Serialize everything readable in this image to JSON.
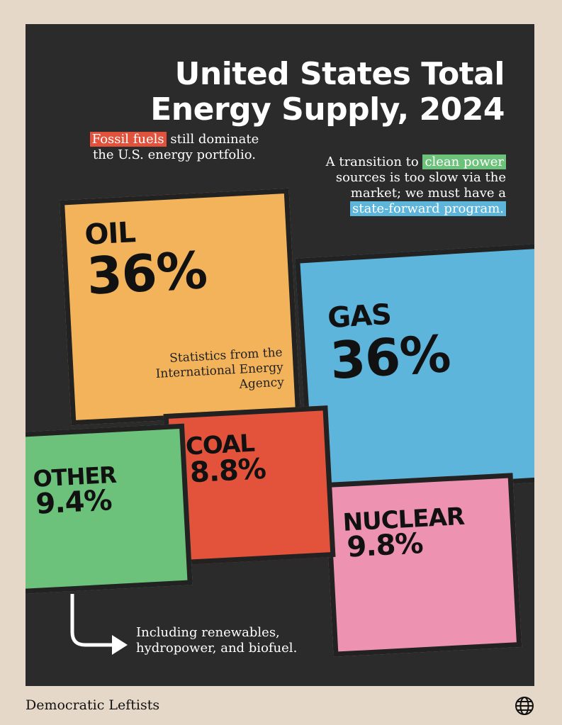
{
  "title": {
    "line1": "United States Total",
    "line2": "Energy Supply, 2024"
  },
  "note_left": {
    "highlight": "Fossil fuels",
    "rest1": " still dominate",
    "rest2": "the U.S. energy portfolio."
  },
  "note_right": {
    "pre": "A transition to ",
    "highlight1": "clean power",
    "mid1": "sources is too slow via the",
    "mid2": "market; we must have a",
    "highlight2": "state-forward program."
  },
  "source_note": {
    "line1": "Statistics from the",
    "line2": "International Energy",
    "line3": "Agency"
  },
  "other_note": {
    "line1": "Including renewables,",
    "line2": "hydropower, and biofuel."
  },
  "footer": {
    "brand": "Democratic Leftists",
    "icon": "globe-icon"
  },
  "colors": {
    "background": "#e5d8c8",
    "panel": "#2b2b2b",
    "oil": "#f2b35a",
    "gas": "#5db5db",
    "coal": "#e3533b",
    "other": "#6cc17b",
    "nuclear": "#ee92b1",
    "highlight_red": "#e0523b",
    "highlight_green": "#6cc17b",
    "highlight_blue": "#5db5db"
  },
  "chart_data": {
    "type": "treemap",
    "title": "United States Total Energy Supply, 2024",
    "categories": [
      "OIL",
      "GAS",
      "NUCLEAR",
      "OTHER",
      "COAL"
    ],
    "values": [
      36,
      36,
      9.8,
      9.4,
      8.8
    ],
    "value_labels": [
      "36%",
      "36%",
      "9.8%",
      "9.4%",
      "8.8%"
    ],
    "unit": "%"
  }
}
